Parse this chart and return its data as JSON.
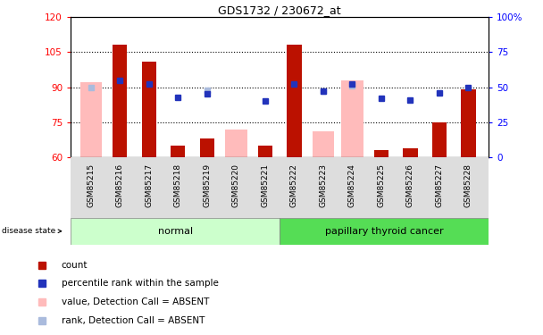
{
  "title": "GDS1732 / 230672_at",
  "samples": [
    "GSM85215",
    "GSM85216",
    "GSM85217",
    "GSM85218",
    "GSM85219",
    "GSM85220",
    "GSM85221",
    "GSM85222",
    "GSM85223",
    "GSM85224",
    "GSM85225",
    "GSM85226",
    "GSM85227",
    "GSM85228"
  ],
  "count_values": [
    null,
    108,
    101,
    65,
    68,
    null,
    65,
    108,
    null,
    null,
    63,
    64,
    75,
    89
  ],
  "absent_value_bars": [
    92,
    null,
    null,
    null,
    null,
    72,
    null,
    null,
    71,
    93,
    null,
    null,
    null,
    null
  ],
  "percentile_rank_pct": [
    null,
    55,
    52,
    43,
    45,
    null,
    40,
    52,
    47,
    52,
    42,
    41,
    46,
    50
  ],
  "absent_rank_pct": [
    50,
    null,
    null,
    null,
    48,
    null,
    null,
    null,
    47,
    51,
    null,
    null,
    null,
    null
  ],
  "ylim_left": [
    60,
    120
  ],
  "ylim_right": [
    0,
    100
  ],
  "yticks_left": [
    60,
    75,
    90,
    105,
    120
  ],
  "yticks_right": [
    0,
    25,
    50,
    75,
    100
  ],
  "ytick_labels_left": [
    "60",
    "75",
    "90",
    "105",
    "120"
  ],
  "ytick_labels_right": [
    "0",
    "25",
    "50",
    "75",
    "100%"
  ],
  "bar_width": 0.5,
  "count_color": "#BB1100",
  "absent_bar_color": "#FFBBBB",
  "percentile_color": "#2233BB",
  "absent_rank_color": "#AABBDD",
  "legend_items": [
    {
      "label": "count",
      "color": "#BB1100"
    },
    {
      "label": "percentile rank within the sample",
      "color": "#2233BB"
    },
    {
      "label": "value, Detection Call = ABSENT",
      "color": "#FFBBBB"
    },
    {
      "label": "rank, Detection Call = ABSENT",
      "color": "#AABBDD"
    }
  ],
  "normal_color": "#CCFFCC",
  "cancer_color": "#55DD55",
  "xtick_bg_color": "#DDDDDD"
}
